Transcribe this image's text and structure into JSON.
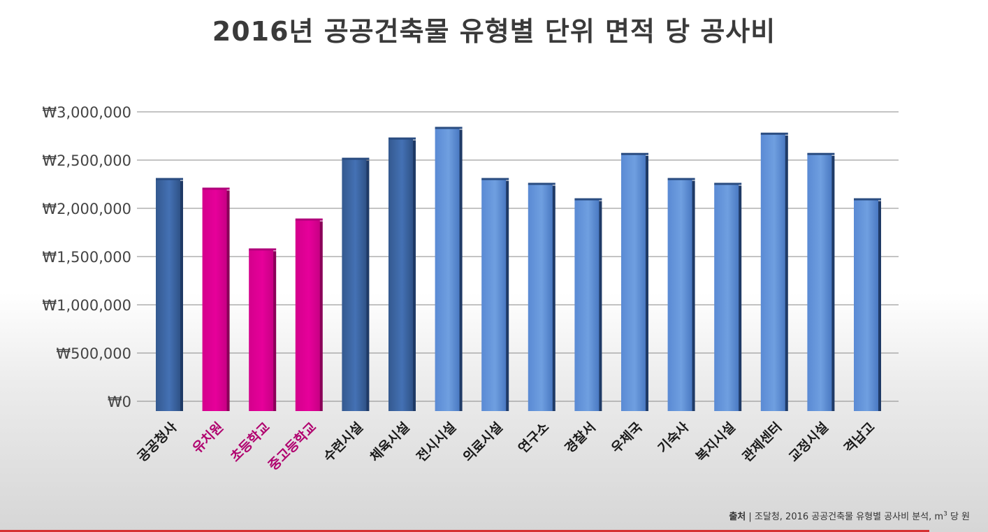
{
  "chart_data": {
    "type": "bar",
    "title": "2016년 공공건축물 유형별 단위 면적 당 공사비",
    "categories": [
      "공공청사",
      "유치원",
      "초등학교",
      "중고등학교",
      "수련시설",
      "체육시설",
      "전시시설",
      "의료시설",
      "연구소",
      "경찰서",
      "우체국",
      "기숙사",
      "복지시설",
      "관제센터",
      "교정시설",
      "격납고"
    ],
    "values": [
      2300000,
      2200000,
      1570000,
      1880000,
      2510000,
      2720000,
      2830000,
      2300000,
      2250000,
      2090000,
      2560000,
      2300000,
      2250000,
      2770000,
      2560000,
      2090000
    ],
    "highlighted": [
      false,
      true,
      true,
      true,
      false,
      false,
      false,
      false,
      false,
      false,
      false,
      false,
      false,
      false,
      false,
      false
    ],
    "y_ticks": [
      "₩0",
      "₩500,000",
      "₩1,000,000",
      "₩1,500,000",
      "₩2,000,000",
      "₩2,500,000",
      "₩3,000,000"
    ],
    "ylim": [
      0,
      3000000
    ],
    "xlabel": "",
    "ylabel": "",
    "grid": true,
    "legend": "none",
    "colors": {
      "blue_dark": "#3f6aad",
      "blue_light": "#6f9fe0",
      "highlight": "#e6009a",
      "highlight_label": "#b0006e",
      "label": "#1a1a1a",
      "grid": "#888888"
    }
  },
  "source": {
    "label": "출처",
    "separator": "|",
    "text": "조달청, 2016 공공건축물 유형별 공사비 분석, m",
    "superscript": "3",
    "suffix": " 당 원"
  }
}
